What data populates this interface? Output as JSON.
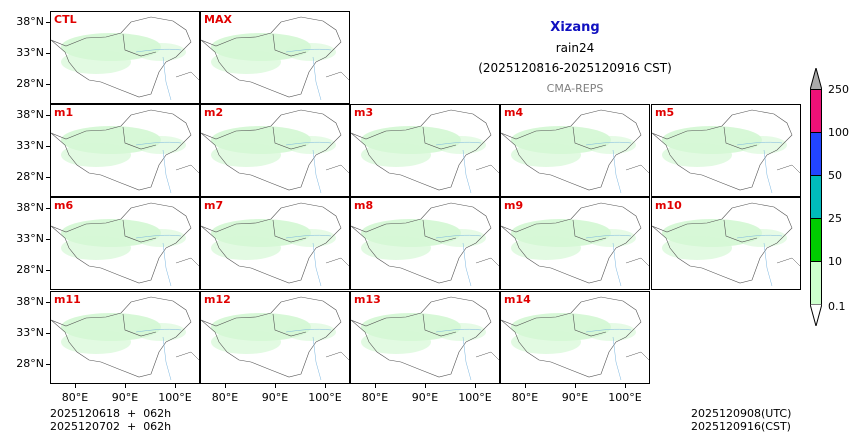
{
  "chart_data": {
    "type": "heatmap",
    "title": "Xizang",
    "subtitle": "rain24",
    "period": "(2025120816-2025120916 CST)",
    "source": "CMA-REPS",
    "panels": [
      "CTL",
      "MAX",
      "m1",
      "m2",
      "m3",
      "m4",
      "m5",
      "m6",
      "m7",
      "m8",
      "m9",
      "m10",
      "m11",
      "m12",
      "m13",
      "m14"
    ],
    "yticks": [
      "38°N",
      "33°N",
      "28°N"
    ],
    "xticks": [
      "80°E",
      "90°E",
      "100°E"
    ],
    "colorbar": {
      "levels": [
        "0.1",
        "10",
        "25",
        "50",
        "100",
        "250"
      ],
      "colors": [
        "#ccffcc",
        "#00cc00",
        "#00bbbb",
        "#2244ff",
        "#ee1177"
      ],
      "under_color": "#ffffff",
      "over_color": "#aaaaaa"
    },
    "colors": {
      "title": "#1010c0",
      "panel_label": "#e00000",
      "source": "#808080",
      "rain_light": "#c6f5c6"
    }
  },
  "header": {
    "title": "Xizang",
    "variable": "rain24",
    "period": "(2025120816-2025120916 CST)",
    "source": "CMA-REPS"
  },
  "panels": {
    "p0": "CTL",
    "p1": "MAX",
    "p2": "m1",
    "p3": "m2",
    "p4": "m3",
    "p5": "m4",
    "p6": "m5",
    "p7": "m6",
    "p8": "m7",
    "p9": "m8",
    "p10": "m9",
    "p11": "m10",
    "p12": "m11",
    "p13": "m12",
    "p14": "m13",
    "p15": "m14"
  },
  "axes": {
    "y": [
      "38°N",
      "33°N",
      "28°N"
    ],
    "x": [
      "80°E",
      "90°E",
      "100°E"
    ]
  },
  "colorbar": {
    "labels": [
      "250",
      "100",
      "50",
      "25",
      "10",
      "0.1"
    ]
  },
  "footer": {
    "init_line1": "2025120618  +  062h",
    "init_line2": "2025120702  +  062h",
    "valid_utc": "2025120908(UTC)",
    "valid_cst": "2025120916(CST)"
  }
}
